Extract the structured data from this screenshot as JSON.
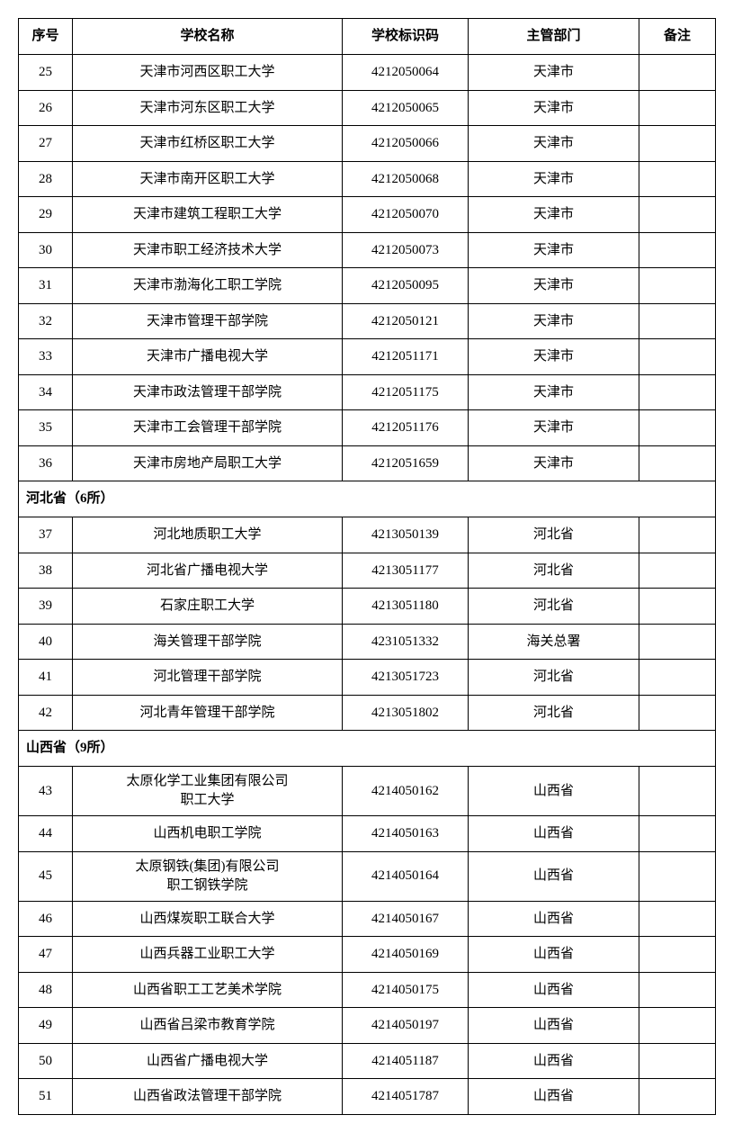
{
  "headers": {
    "seq": "序号",
    "name": "学校名称",
    "code": "学校标识码",
    "dept": "主管部门",
    "note": "备注"
  },
  "sections": {
    "hebei": "河北省（6所）",
    "shanxi": "山西省（9所）"
  },
  "rows": {
    "r25": {
      "seq": "25",
      "name": "天津市河西区职工大学",
      "code": "4212050064",
      "dept": "天津市",
      "note": ""
    },
    "r26": {
      "seq": "26",
      "name": "天津市河东区职工大学",
      "code": "4212050065",
      "dept": "天津市",
      "note": ""
    },
    "r27": {
      "seq": "27",
      "name": "天津市红桥区职工大学",
      "code": "4212050066",
      "dept": "天津市",
      "note": ""
    },
    "r28": {
      "seq": "28",
      "name": "天津市南开区职工大学",
      "code": "4212050068",
      "dept": "天津市",
      "note": ""
    },
    "r29": {
      "seq": "29",
      "name": "天津市建筑工程职工大学",
      "code": "4212050070",
      "dept": "天津市",
      "note": ""
    },
    "r30": {
      "seq": "30",
      "name": "天津市职工经济技术大学",
      "code": "4212050073",
      "dept": "天津市",
      "note": ""
    },
    "r31": {
      "seq": "31",
      "name": "天津市渤海化工职工学院",
      "code": "4212050095",
      "dept": "天津市",
      "note": ""
    },
    "r32": {
      "seq": "32",
      "name": "天津市管理干部学院",
      "code": "4212050121",
      "dept": "天津市",
      "note": ""
    },
    "r33": {
      "seq": "33",
      "name": "天津市广播电视大学",
      "code": "4212051171",
      "dept": "天津市",
      "note": ""
    },
    "r34": {
      "seq": "34",
      "name": "天津市政法管理干部学院",
      "code": "4212051175",
      "dept": "天津市",
      "note": ""
    },
    "r35": {
      "seq": "35",
      "name": "天津市工会管理干部学院",
      "code": "4212051176",
      "dept": "天津市",
      "note": ""
    },
    "r36": {
      "seq": "36",
      "name": "天津市房地产局职工大学",
      "code": "4212051659",
      "dept": "天津市",
      "note": ""
    },
    "r37": {
      "seq": "37",
      "name": "河北地质职工大学",
      "code": "4213050139",
      "dept": "河北省",
      "note": ""
    },
    "r38": {
      "seq": "38",
      "name": "河北省广播电视大学",
      "code": "4213051177",
      "dept": "河北省",
      "note": ""
    },
    "r39": {
      "seq": "39",
      "name": "石家庄职工大学",
      "code": "4213051180",
      "dept": "河北省",
      "note": ""
    },
    "r40": {
      "seq": "40",
      "name": "海关管理干部学院",
      "code": "4231051332",
      "dept": "海关总署",
      "note": ""
    },
    "r41": {
      "seq": "41",
      "name": "河北管理干部学院",
      "code": "4213051723",
      "dept": "河北省",
      "note": ""
    },
    "r42": {
      "seq": "42",
      "name": "河北青年管理干部学院",
      "code": "4213051802",
      "dept": "河北省",
      "note": ""
    },
    "r43": {
      "seq": "43",
      "name": "太原化学工业集团有限公司\n职工大学",
      "code": "4214050162",
      "dept": "山西省",
      "note": ""
    },
    "r44": {
      "seq": "44",
      "name": "山西机电职工学院",
      "code": "4214050163",
      "dept": "山西省",
      "note": ""
    },
    "r45": {
      "seq": "45",
      "name": "太原钢铁(集团)有限公司\n职工钢铁学院",
      "code": "4214050164",
      "dept": "山西省",
      "note": ""
    },
    "r46": {
      "seq": "46",
      "name": "山西煤炭职工联合大学",
      "code": "4214050167",
      "dept": "山西省",
      "note": ""
    },
    "r47": {
      "seq": "47",
      "name": "山西兵器工业职工大学",
      "code": "4214050169",
      "dept": "山西省",
      "note": ""
    },
    "r48": {
      "seq": "48",
      "name": "山西省职工工艺美术学院",
      "code": "4214050175",
      "dept": "山西省",
      "note": ""
    },
    "r49": {
      "seq": "49",
      "name": "山西省吕梁市教育学院",
      "code": "4214050197",
      "dept": "山西省",
      "note": ""
    },
    "r50": {
      "seq": "50",
      "name": "山西省广播电视大学",
      "code": "4214051187",
      "dept": "山西省",
      "note": ""
    },
    "r51": {
      "seq": "51",
      "name": "山西省政法管理干部学院",
      "code": "4214051787",
      "dept": "山西省",
      "note": ""
    }
  },
  "styling": {
    "border_color": "#000000",
    "background_color": "#ffffff",
    "text_color": "#000000",
    "font_family": "SimSun",
    "header_fontsize": 15,
    "cell_fontsize": 15,
    "col_widths": {
      "seq": 60,
      "name": 300,
      "code": 140,
      "dept": 190,
      "note": 85
    }
  }
}
